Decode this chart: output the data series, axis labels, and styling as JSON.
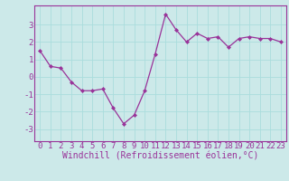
{
  "x": [
    0,
    1,
    2,
    3,
    4,
    5,
    6,
    7,
    8,
    9,
    10,
    11,
    12,
    13,
    14,
    15,
    16,
    17,
    18,
    19,
    20,
    21,
    22,
    23
  ],
  "y": [
    1.5,
    0.6,
    0.5,
    -0.3,
    -0.8,
    -0.8,
    -0.7,
    -1.8,
    -2.7,
    -2.2,
    -0.8,
    1.3,
    3.6,
    2.7,
    2.0,
    2.5,
    2.2,
    2.3,
    1.7,
    2.2,
    2.3,
    2.2,
    2.2,
    2.0
  ],
  "line_color": "#993399",
  "marker": "D",
  "marker_size": 2,
  "bg_color": "#cce9e9",
  "grid_color": "#aadddd",
  "xlabel": "Windchill (Refroidissement éolien,°C)",
  "xlabel_fontsize": 7,
  "xtick_labels": [
    "0",
    "1",
    "2",
    "3",
    "4",
    "5",
    "6",
    "7",
    "8",
    "9",
    "10",
    "11",
    "12",
    "13",
    "14",
    "15",
    "16",
    "17",
    "18",
    "19",
    "20",
    "21",
    "22",
    "23"
  ],
  "yticks": [
    -3,
    -2,
    -1,
    0,
    1,
    2,
    3
  ],
  "ylim": [
    -3.7,
    4.1
  ],
  "xlim": [
    -0.5,
    23.5
  ],
  "tick_fontsize": 6.5,
  "tick_color": "#993399",
  "spine_color": "#993399",
  "line_width": 0.9
}
